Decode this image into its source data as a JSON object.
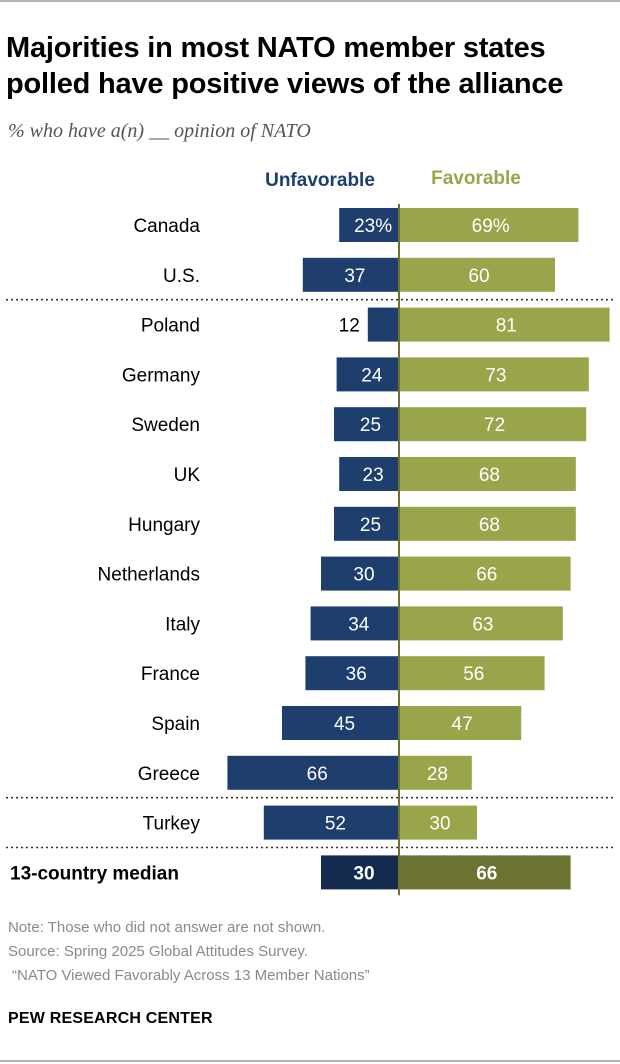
{
  "header": {
    "title": "Majorities in most NATO member states polled have positive views of the alliance",
    "subtitle": "% who have a(n) __ opinion of NATO"
  },
  "colors": {
    "unfavorable": "#1e3e6e",
    "favorable": "#9aa44a",
    "median_unfavorable": "#132b4e",
    "median_favorable": "#6b7232",
    "axis": "#6b7232"
  },
  "chart_data": {
    "type": "bar",
    "orientation": "horizontal-diverging",
    "title": "Majorities in most NATO member states polled have positive views of the alliance",
    "subtitle": "% who have a(n) __ opinion of NATO",
    "legend": {
      "placement": "top",
      "entries": [
        "Unfavorable",
        "Favorable"
      ]
    },
    "categories": [
      "Canada",
      "U.S.",
      "Poland",
      "Germany",
      "Sweden",
      "UK",
      "Hungary",
      "Netherlands",
      "Italy",
      "France",
      "Spain",
      "Greece",
      "Turkey",
      "13-country median"
    ],
    "series": [
      {
        "name": "Unfavorable",
        "values": [
          23,
          37,
          12,
          24,
          25,
          23,
          25,
          30,
          34,
          36,
          45,
          66,
          52,
          30
        ],
        "labels": [
          "23%",
          "37",
          "12",
          "24",
          "25",
          "23",
          "25",
          "30",
          "34",
          "36",
          "45",
          "66",
          "52",
          "30"
        ]
      },
      {
        "name": "Favorable",
        "values": [
          69,
          60,
          81,
          73,
          72,
          68,
          68,
          66,
          63,
          56,
          47,
          28,
          30,
          66
        ],
        "labels": [
          "69%",
          "60",
          "81",
          "73",
          "72",
          "68",
          "68",
          "66",
          "63",
          "56",
          "47",
          "28",
          "30",
          "66"
        ]
      }
    ],
    "xlim": [
      -100,
      100
    ],
    "group_separators_after": [
      "U.S.",
      "Greece",
      "Turkey"
    ],
    "emphasized_category": "13-country median"
  },
  "footer": {
    "note": "Note: Those who did not answer are not shown.",
    "source": "Source: Spring 2025 Global Attitudes Survey.",
    "report": "“NATO Viewed Favorably Across 13 Member Nations”",
    "brand": "PEW RESEARCH CENTER"
  }
}
